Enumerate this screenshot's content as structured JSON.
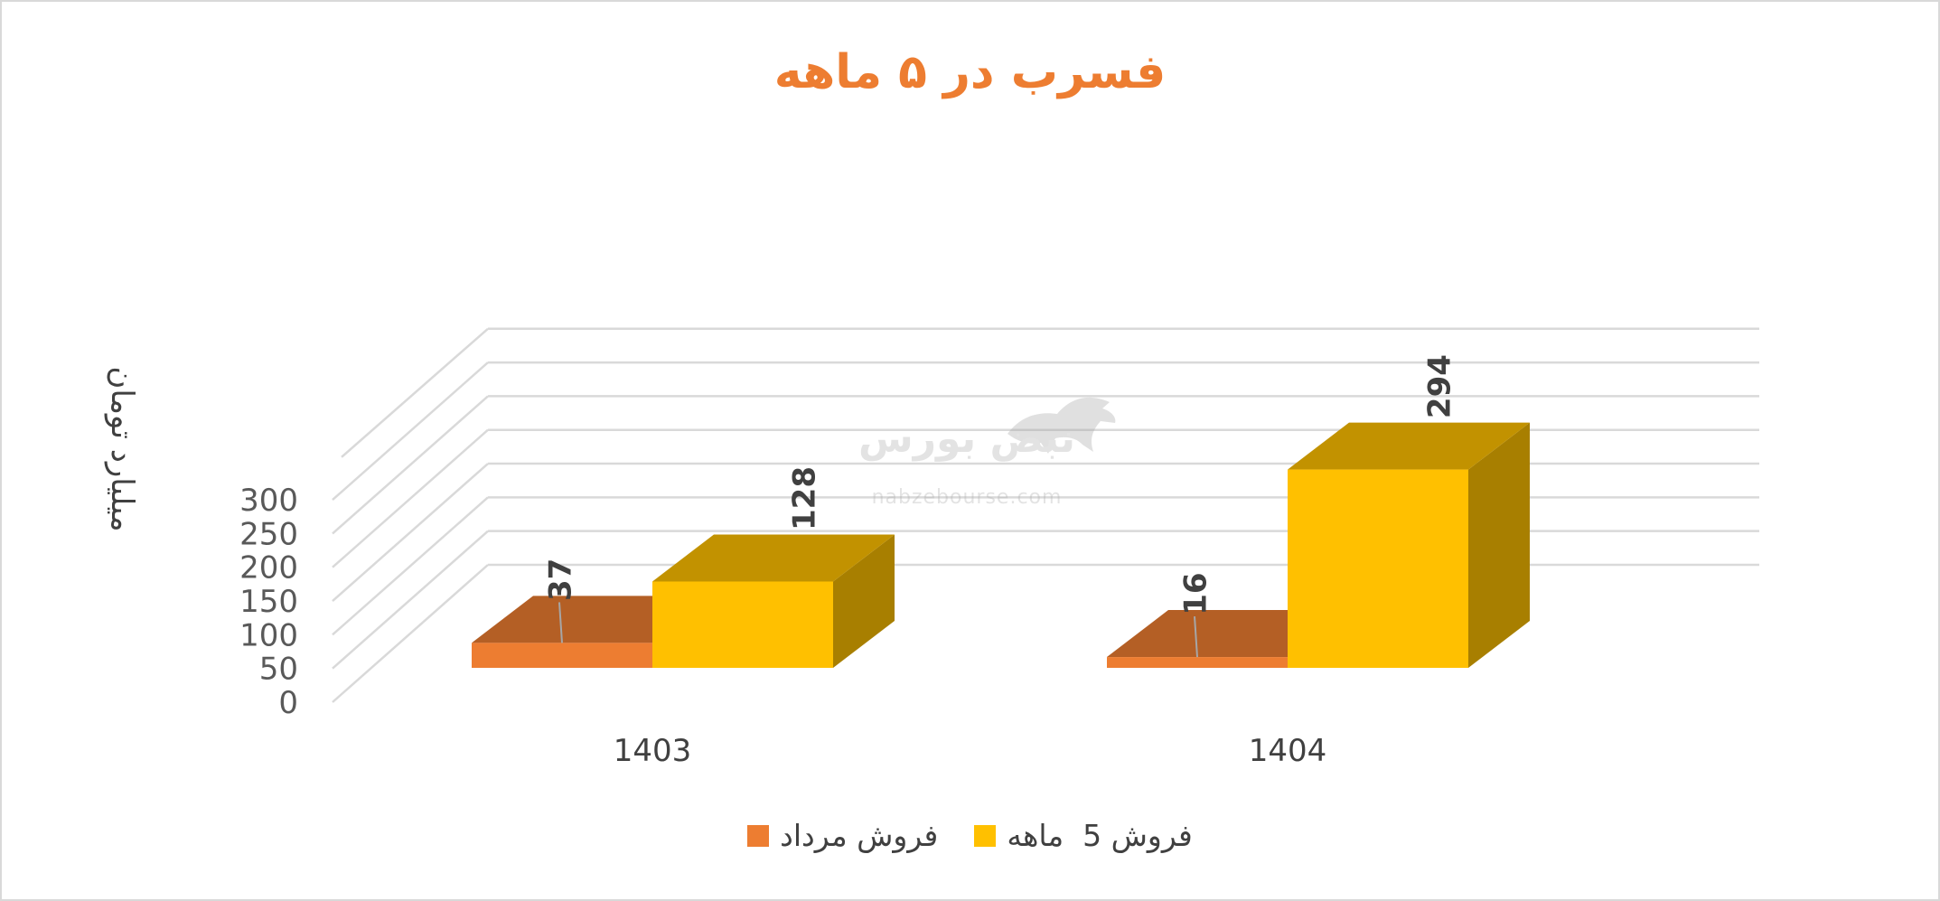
{
  "chart_data": {
    "type": "bar",
    "title": "فسرب در ۵ ماهه",
    "ylabel": "میلیارد تومان",
    "xlabel": "",
    "categories": [
      "1403",
      "1404"
    ],
    "series": [
      {
        "name": "فروش مرداد",
        "values": [
          37,
          16
        ],
        "color": "#ED7D31"
      },
      {
        "name": "فروش 5  ماهه",
        "values": [
          128,
          294
        ],
        "color": "#FFC000"
      }
    ],
    "ylim": [
      0,
      300
    ],
    "yticks": [
      "0",
      "50",
      "100",
      "150",
      "200",
      "250",
      "300"
    ],
    "grid": true,
    "three_d": true,
    "legend_position": "bottom"
  },
  "title_color": "#ED7D31",
  "watermark": {
    "logo_text": "نبض بورس",
    "url": "nabzebourse.com",
    "icon": "bull-icon"
  }
}
